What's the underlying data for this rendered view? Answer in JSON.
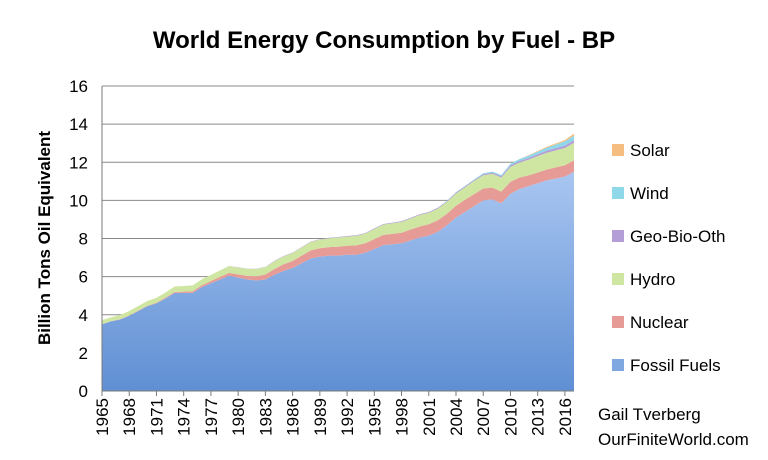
{
  "chart_data": {
    "type": "area",
    "stacked": true,
    "title": "World Energy Consumption by Fuel - BP",
    "ylabel": "Billion Tons Oil Equivalent",
    "xlabel": "",
    "ylim": [
      0,
      16
    ],
    "yticks": [
      "0",
      "2",
      "4",
      "6",
      "8",
      "10",
      "12",
      "14",
      "16"
    ],
    "xlim": [
      1965,
      2017
    ],
    "xticks": [
      "1965",
      "1968",
      "1971",
      "1974",
      "1977",
      "1980",
      "1983",
      "1986",
      "1989",
      "1992",
      "1995",
      "1998",
      "2001",
      "2004",
      "2007",
      "2010",
      "2013",
      "2016"
    ],
    "grid": true,
    "legend_position": "right",
    "years": [
      1965,
      1966,
      1967,
      1968,
      1969,
      1970,
      1971,
      1972,
      1973,
      1974,
      1975,
      1976,
      1977,
      1978,
      1979,
      1980,
      1981,
      1982,
      1983,
      1984,
      1985,
      1986,
      1987,
      1988,
      1989,
      1990,
      1991,
      1992,
      1993,
      1994,
      1995,
      1996,
      1997,
      1998,
      1999,
      2000,
      2001,
      2002,
      2003,
      2004,
      2005,
      2006,
      2007,
      2008,
      2009,
      2010,
      2011,
      2012,
      2013,
      2014,
      2015,
      2016,
      2017
    ],
    "series": [
      {
        "name": "Fossil Fuels",
        "color": "#7fa7e0",
        "values": [
          3.5,
          3.65,
          3.75,
          3.95,
          4.2,
          4.45,
          4.6,
          4.85,
          5.15,
          5.15,
          5.15,
          5.45,
          5.65,
          5.85,
          6.05,
          5.95,
          5.85,
          5.8,
          5.85,
          6.1,
          6.3,
          6.45,
          6.7,
          6.95,
          7.05,
          7.1,
          7.1,
          7.15,
          7.15,
          7.25,
          7.45,
          7.65,
          7.7,
          7.75,
          7.9,
          8.05,
          8.15,
          8.35,
          8.7,
          9.1,
          9.4,
          9.7,
          10.0,
          10.05,
          9.85,
          10.35,
          10.6,
          10.75,
          10.9,
          11.05,
          11.15,
          11.25,
          11.5
        ]
      },
      {
        "name": "Nuclear",
        "color": "#e79b97",
        "values": [
          0.01,
          0.01,
          0.02,
          0.02,
          0.02,
          0.02,
          0.03,
          0.05,
          0.05,
          0.06,
          0.08,
          0.1,
          0.12,
          0.14,
          0.15,
          0.17,
          0.19,
          0.22,
          0.26,
          0.3,
          0.35,
          0.37,
          0.4,
          0.43,
          0.44,
          0.45,
          0.47,
          0.47,
          0.49,
          0.5,
          0.52,
          0.54,
          0.54,
          0.55,
          0.57,
          0.58,
          0.6,
          0.61,
          0.6,
          0.62,
          0.63,
          0.63,
          0.62,
          0.62,
          0.61,
          0.63,
          0.6,
          0.56,
          0.56,
          0.57,
          0.58,
          0.59,
          0.6
        ]
      },
      {
        "name": "Hydro",
        "color": "#cfe6a2",
        "values": [
          0.2,
          0.21,
          0.22,
          0.23,
          0.24,
          0.25,
          0.26,
          0.27,
          0.28,
          0.3,
          0.31,
          0.31,
          0.32,
          0.34,
          0.35,
          0.36,
          0.37,
          0.38,
          0.39,
          0.41,
          0.41,
          0.42,
          0.43,
          0.44,
          0.45,
          0.46,
          0.48,
          0.48,
          0.5,
          0.51,
          0.53,
          0.54,
          0.56,
          0.57,
          0.58,
          0.6,
          0.6,
          0.61,
          0.62,
          0.64,
          0.66,
          0.69,
          0.7,
          0.73,
          0.74,
          0.78,
          0.79,
          0.83,
          0.86,
          0.88,
          0.89,
          0.91,
          0.92
        ]
      },
      {
        "name": "Geo-Bio-Oth",
        "color": "#b49ed8",
        "values": [
          0.0,
          0.0,
          0.0,
          0.0,
          0.0,
          0.0,
          0.0,
          0.0,
          0.0,
          0.0,
          0.0,
          0.0,
          0.0,
          0.0,
          0.01,
          0.01,
          0.01,
          0.01,
          0.01,
          0.02,
          0.02,
          0.02,
          0.02,
          0.02,
          0.02,
          0.03,
          0.03,
          0.03,
          0.03,
          0.03,
          0.03,
          0.03,
          0.03,
          0.04,
          0.04,
          0.04,
          0.04,
          0.04,
          0.04,
          0.05,
          0.05,
          0.05,
          0.06,
          0.06,
          0.07,
          0.08,
          0.08,
          0.09,
          0.1,
          0.11,
          0.12,
          0.13,
          0.14
        ]
      },
      {
        "name": "Wind",
        "color": "#8fd8ea",
        "values": [
          0,
          0,
          0,
          0,
          0,
          0,
          0,
          0,
          0,
          0,
          0,
          0,
          0,
          0,
          0,
          0,
          0,
          0,
          0,
          0,
          0,
          0,
          0,
          0,
          0,
          0,
          0,
          0,
          0,
          0,
          0,
          0,
          0,
          0,
          0,
          0,
          0.01,
          0.01,
          0.02,
          0.02,
          0.02,
          0.03,
          0.04,
          0.05,
          0.06,
          0.08,
          0.1,
          0.12,
          0.14,
          0.16,
          0.19,
          0.22,
          0.24
        ]
      },
      {
        "name": "Solar",
        "color": "#f6bd80",
        "values": [
          0,
          0,
          0,
          0,
          0,
          0,
          0,
          0,
          0,
          0,
          0,
          0,
          0,
          0,
          0,
          0,
          0,
          0,
          0,
          0,
          0,
          0,
          0,
          0,
          0,
          0,
          0,
          0,
          0,
          0,
          0,
          0,
          0,
          0,
          0,
          0,
          0,
          0,
          0,
          0,
          0,
          0,
          0,
          0,
          0,
          0,
          0.01,
          0.02,
          0.03,
          0.04,
          0.06,
          0.07,
          0.1
        ]
      }
    ],
    "credit": [
      "Gail Tverberg",
      "OurFiniteWorld.com"
    ]
  }
}
